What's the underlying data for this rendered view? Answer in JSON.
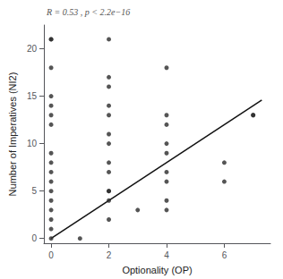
{
  "chart_data": {
    "type": "scatter",
    "xlabel": "Optionality (OP)",
    "ylabel": "Number of Imperatives (NI2)",
    "annotation": "R = 0.53 , p < 2.2e−16",
    "series": [
      {
        "type": "scatter",
        "color": "#2a2a2a",
        "x": [
          0,
          0,
          0,
          0,
          0,
          0,
          0,
          0,
          0,
          0,
          0,
          0,
          0,
          0,
          0,
          0,
          0,
          1,
          2,
          2,
          2,
          2,
          2,
          2,
          2,
          2,
          2,
          2,
          2,
          2,
          2,
          3,
          4,
          4,
          4,
          4,
          4,
          4,
          4,
          4,
          4,
          6,
          6,
          7,
          7
        ],
        "values": [
          0,
          1,
          2,
          3,
          4,
          5,
          6,
          7,
          8,
          9,
          12,
          13,
          14,
          15,
          18,
          21,
          21,
          0,
          2,
          4,
          5,
          5,
          7,
          8,
          10,
          11,
          13,
          14,
          16,
          17,
          21,
          3,
          4,
          6,
          7,
          9,
          10,
          12,
          13,
          18,
          3,
          6,
          8,
          13,
          13
        ]
      },
      {
        "type": "line",
        "color": "#111111",
        "x": [
          0,
          7.3
        ],
        "values": [
          0,
          14.6
        ]
      }
    ],
    "xlim": [
      -0.25,
      7.6
    ],
    "ylim": [
      -0.5,
      22.5
    ],
    "xticks": [
      0,
      2,
      4,
      6
    ],
    "yticks": [
      0,
      5,
      10,
      15,
      20
    ],
    "grid": false
  }
}
